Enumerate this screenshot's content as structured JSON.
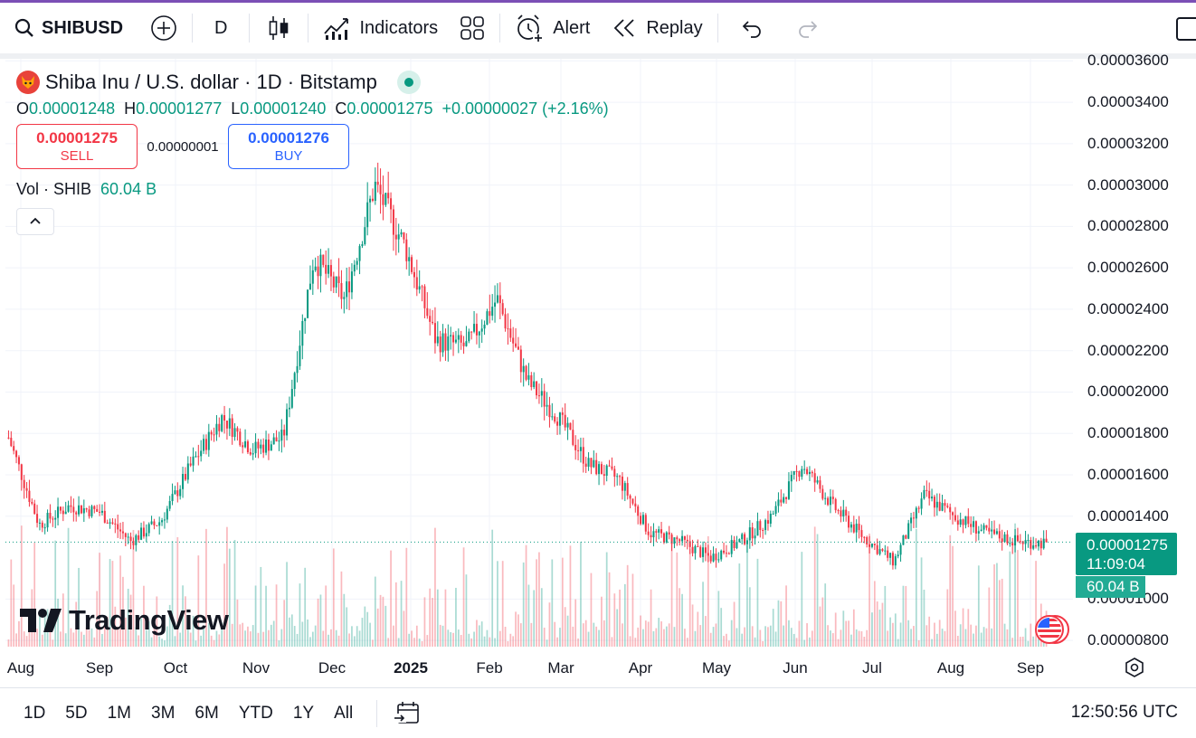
{
  "toolbar": {
    "symbol": "SHIBUSD",
    "interval": "D",
    "indicators_label": "Indicators",
    "alert_label": "Alert",
    "replay_label": "Replay"
  },
  "legend": {
    "title": "Shiba Inu / U.S. dollar · 1D · Bitstamp",
    "open_key": "O",
    "open": "0.00001248",
    "high_key": "H",
    "high": "0.00001277",
    "low_key": "L",
    "low": "0.00001240",
    "close_key": "C",
    "close": "0.00001275",
    "change": "+0.00000027 (+2.16%)",
    "sell_price": "0.00001275",
    "sell_label": "SELL",
    "spread": "0.00000001",
    "buy_price": "0.00001276",
    "buy_label": "BUY",
    "volume_label": "Vol · SHIB",
    "volume_value": "60.04 B"
  },
  "price_axis": [
    "0.00003600",
    "0.00003400",
    "0.00003200",
    "0.00003000",
    "0.00002800",
    "0.00002600",
    "0.00002400",
    "0.00002200",
    "0.00002000",
    "0.00001800",
    "0.00001600",
    "0.00001400",
    "0.00001000",
    "0.00000800"
  ],
  "price_tag": {
    "price": "0.00001275",
    "countdown": "11:09:04"
  },
  "volume_tag": "60.04 B",
  "time_axis": [
    "Aug",
    "Sep",
    "Oct",
    "Nov",
    "Dec",
    "2025",
    "Feb",
    "Mar",
    "Apr",
    "May",
    "Jun",
    "Jul",
    "Aug",
    "Sep"
  ],
  "branding": "TradingView",
  "bottom": {
    "ranges": [
      "1D",
      "5D",
      "1M",
      "3M",
      "6M",
      "YTD",
      "1Y",
      "All"
    ],
    "clock": "12:50:56 UTC"
  },
  "colors": {
    "up": "#089981",
    "down": "#f23645",
    "accent": "#2962ff"
  },
  "chart_data": {
    "type": "candlestick",
    "title": "Shiba Inu / U.S. dollar · 1D · Bitstamp",
    "ylim": [
      7.7e-06,
      3.61e-05
    ],
    "x_range": [
      "Aug",
      "Sep"
    ],
    "anchors": [
      {
        "month": "Aug",
        "price": 1.78e-05
      },
      {
        "month": "Aug",
        "price": 1.36e-05
      },
      {
        "month": "Aug",
        "price": 1.45e-05
      },
      {
        "month": "Sep",
        "price": 1.42e-05
      },
      {
        "month": "Sep",
        "price": 1.28e-05
      },
      {
        "month": "Sep",
        "price": 1.38e-05
      },
      {
        "month": "Oct",
        "price": 1.65e-05
      },
      {
        "month": "Oct",
        "price": 1.88e-05
      },
      {
        "month": "Oct",
        "price": 1.72e-05
      },
      {
        "month": "Nov",
        "price": 1.78e-05
      },
      {
        "month": "Nov",
        "price": 2.65e-05
      },
      {
        "month": "Nov",
        "price": 2.45e-05
      },
      {
        "month": "Dec",
        "price": 3e-05
      },
      {
        "month": "Dec",
        "price": 2.7e-05
      },
      {
        "month": "Dec",
        "price": 2.25e-05
      },
      {
        "month": "2025",
        "price": 2.22e-05
      },
      {
        "month": "2025",
        "price": 2.45e-05
      },
      {
        "month": "2025",
        "price": 2.05e-05
      },
      {
        "month": "Feb",
        "price": 1.88e-05
      },
      {
        "month": "Feb",
        "price": 1.65e-05
      },
      {
        "month": "Feb",
        "price": 1.58e-05
      },
      {
        "month": "Mar",
        "price": 1.32e-05
      },
      {
        "month": "Mar",
        "price": 1.28e-05
      },
      {
        "month": "Apr",
        "price": 1.2e-05
      },
      {
        "month": "Apr",
        "price": 1.28e-05
      },
      {
        "month": "May",
        "price": 1.4e-05
      },
      {
        "month": "May",
        "price": 1.65e-05
      },
      {
        "month": "Jun",
        "price": 1.45e-05
      },
      {
        "month": "Jun",
        "price": 1.3e-05
      },
      {
        "month": "Jul",
        "price": 1.18e-05
      },
      {
        "month": "Jul",
        "price": 1.5e-05
      },
      {
        "month": "Jul",
        "price": 1.4e-05
      },
      {
        "month": "Aug",
        "price": 1.32e-05
      },
      {
        "month": "Aug",
        "price": 1.28e-05
      },
      {
        "month": "Sep",
        "price": 1.27e-05
      }
    ],
    "last_close": 1.275e-05
  }
}
